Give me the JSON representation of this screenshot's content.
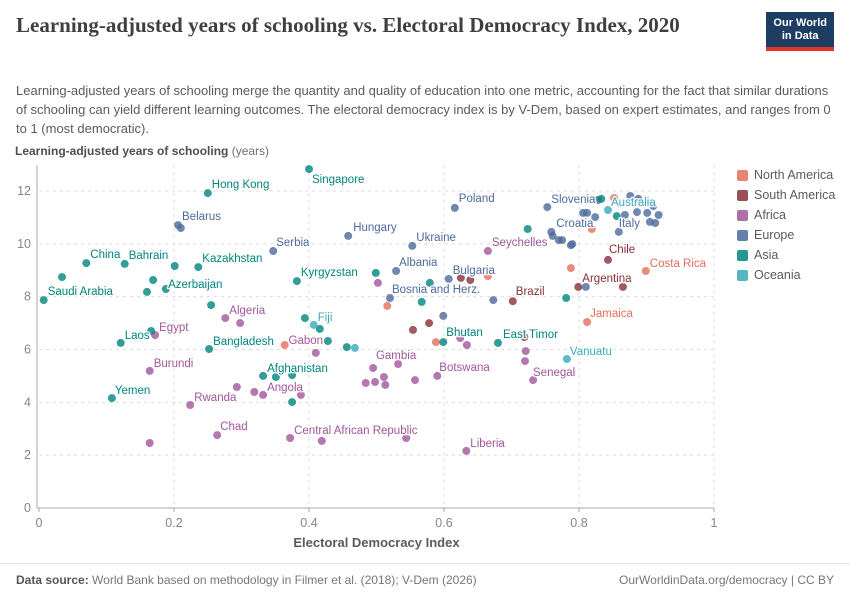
{
  "header": {
    "title": "Learning-adjusted years of schooling vs. Electoral Democracy Index, 2020",
    "subtitle": "Learning-adjusted years of schooling merge the quantity and quality of education into one metric, accounting for the fact that similar durations of schooling can yield different learning outcomes. The electoral democracy index is by V-Dem, based on expert estimates, and ranges from 0 to 1 (most democratic).",
    "logo": {
      "line1": "Our World",
      "line2": "in Data"
    }
  },
  "brand": {
    "logo_bg": "#1d3d63",
    "logo_stripe": "#e0352b"
  },
  "legend": {
    "items": [
      {
        "label": "North America",
        "color": "#e56e5a"
      },
      {
        "label": "South America",
        "color": "#883039"
      },
      {
        "label": "Africa",
        "color": "#a2559c"
      },
      {
        "label": "Europe",
        "color": "#4c6a9c"
      },
      {
        "label": "Asia",
        "color": "#00847e"
      },
      {
        "label": "Oceania",
        "color": "#38aaba"
      }
    ]
  },
  "chart_data": {
    "type": "scatter",
    "title": "Learning-adjusted years of schooling vs. Electoral Democracy Index, 2020",
    "x_axis": {
      "label": "Electoral Democracy Index",
      "range": [
        0,
        1
      ],
      "ticks": [
        0,
        0.2,
        0.4,
        0.6,
        0.8,
        1
      ],
      "tick_labels": [
        "0",
        "0.2",
        "0.4",
        "0.6",
        "0.8",
        "1"
      ]
    },
    "y_axis": {
      "label_bold": "Learning-adjusted years of schooling",
      "label_unit": " (years)",
      "range": [
        0,
        13
      ],
      "ticks": [
        0,
        2,
        4,
        6,
        8,
        10,
        12
      ]
    },
    "grid": "dashed",
    "legend_position": "right",
    "series": [
      {
        "name": "North America",
        "color": "#e56e5a",
        "points": [
          {
            "x": 0.899,
            "y": 8.97,
            "l": "Costa Rica",
            "o": [
              4,
              -4
            ]
          },
          {
            "x": 0.812,
            "y": 7.04,
            "l": "Jamaica",
            "o": [
              3,
              -5
            ]
          },
          {
            "x": 0.819,
            "y": 10.56
          },
          {
            "x": 0.852,
            "y": 11.73
          },
          {
            "x": 0.788,
            "y": 9.08
          },
          {
            "x": 0.665,
            "y": 8.78
          },
          {
            "x": 0.516,
            "y": 7.65
          },
          {
            "x": 0.588,
            "y": 6.28
          },
          {
            "x": 0.364,
            "y": 6.17
          }
        ]
      },
      {
        "name": "South America",
        "color": "#883039",
        "points": [
          {
            "x": 0.702,
            "y": 7.83,
            "l": "Brazil",
            "o": [
              3,
              -6
            ]
          },
          {
            "x": 0.843,
            "y": 9.39,
            "l": "Chile",
            "o": [
              1,
              -7
            ]
          },
          {
            "x": 0.799,
            "y": 8.37,
            "l": "Argentina",
            "o": [
              4,
              -5
            ]
          },
          {
            "x": 0.625,
            "y": 8.71
          },
          {
            "x": 0.639,
            "y": 8.63
          },
          {
            "x": 0.578,
            "y": 7.0
          },
          {
            "x": 0.554,
            "y": 6.74
          },
          {
            "x": 0.719,
            "y": 6.47
          },
          {
            "x": 0.865,
            "y": 8.37
          }
        ]
      },
      {
        "name": "Africa",
        "color": "#a2559c",
        "points": [
          {
            "x": 0.665,
            "y": 9.73,
            "l": "Seychelles",
            "o": [
              4,
              -5
            ]
          },
          {
            "x": 0.532,
            "y": 5.45,
            "l": "Gambia",
            "o": [
              -2,
              -5
            ],
            "a": "m"
          },
          {
            "x": 0.59,
            "y": 5.0,
            "l": "Botswana",
            "o": [
              2,
              -5
            ]
          },
          {
            "x": 0.72,
            "y": 5.56,
            "l": "Senegal",
            "o": [
              8,
              15
            ]
          },
          {
            "x": 0.276,
            "y": 7.19,
            "l": "Algeria",
            "o": [
              4,
              -4
            ]
          },
          {
            "x": 0.172,
            "y": 6.55,
            "l": "Egypt",
            "o": [
              4,
              -4
            ]
          },
          {
            "x": 0.41,
            "y": 5.87,
            "l": "Gabon",
            "o": [
              -10,
              -9
            ],
            "a": "m"
          },
          {
            "x": 0.164,
            "y": 5.19,
            "l": "Burundi",
            "o": [
              4,
              -4
            ]
          },
          {
            "x": 0.224,
            "y": 3.9,
            "l": "Rwanda",
            "o": [
              4,
              -4
            ]
          },
          {
            "x": 0.332,
            "y": 4.28,
            "l": "Angola",
            "o": [
              4,
              -4
            ]
          },
          {
            "x": 0.264,
            "y": 2.76,
            "l": "Chad",
            "o": [
              3,
              -5
            ]
          },
          {
            "x": 0.372,
            "y": 2.65,
            "l": "Central African Republic",
            "o": [
              4,
              -4
            ]
          },
          {
            "x": 0.633,
            "y": 2.16,
            "l": "Liberia",
            "o": [
              4,
              -4
            ]
          },
          {
            "x": 0.298,
            "y": 7.0
          },
          {
            "x": 0.502,
            "y": 8.52
          },
          {
            "x": 0.721,
            "y": 5.94
          },
          {
            "x": 0.732,
            "y": 4.84
          },
          {
            "x": 0.293,
            "y": 4.58
          },
          {
            "x": 0.319,
            "y": 4.39
          },
          {
            "x": 0.388,
            "y": 4.28
          },
          {
            "x": 0.164,
            "y": 2.46
          },
          {
            "x": 0.419,
            "y": 2.54
          },
          {
            "x": 0.544,
            "y": 2.65
          },
          {
            "x": 0.484,
            "y": 4.73
          },
          {
            "x": 0.498,
            "y": 4.77
          },
          {
            "x": 0.511,
            "y": 4.96
          },
          {
            "x": 0.513,
            "y": 4.66
          },
          {
            "x": 0.557,
            "y": 4.84
          },
          {
            "x": 0.495,
            "y": 5.3
          },
          {
            "x": 0.624,
            "y": 6.43
          },
          {
            "x": 0.634,
            "y": 6.17
          }
        ]
      },
      {
        "name": "Europe",
        "color": "#4c6a9c",
        "points": [
          {
            "x": 0.206,
            "y": 10.71,
            "l": "Belarus",
            "o": [
              4,
              -5
            ]
          },
          {
            "x": 0.347,
            "y": 9.73,
            "l": "Serbia",
            "o": [
              3,
              -5
            ]
          },
          {
            "x": 0.458,
            "y": 10.3,
            "l": "Hungary",
            "o": [
              5,
              -5
            ]
          },
          {
            "x": 0.553,
            "y": 9.92,
            "l": "Ukraine",
            "o": [
              4,
              -5
            ]
          },
          {
            "x": 0.616,
            "y": 11.36,
            "l": "Poland",
            "o": [
              4,
              -6
            ]
          },
          {
            "x": 0.529,
            "y": 8.97,
            "l": "Albania",
            "o": [
              3,
              -5
            ]
          },
          {
            "x": 0.607,
            "y": 8.67,
            "l": "Bulgaria",
            "o": [
              4,
              -5
            ]
          },
          {
            "x": 0.52,
            "y": 7.95,
            "l": "Bosnia and Herz.",
            "o": [
              2,
              -5
            ]
          },
          {
            "x": 0.753,
            "y": 11.39,
            "l": "Slovenia",
            "o": [
              4,
              -4
            ]
          },
          {
            "x": 0.759,
            "y": 10.45,
            "l": "Croatia",
            "o": [
              5,
              -5
            ]
          },
          {
            "x": 0.859,
            "y": 10.45,
            "l": "Italy",
            "o": [
              0,
              -5
            ]
          },
          {
            "x": 0.21,
            "y": 10.6
          },
          {
            "x": 0.599,
            "y": 7.27
          },
          {
            "x": 0.673,
            "y": 7.87
          },
          {
            "x": 0.81,
            "y": 8.37
          },
          {
            "x": 0.788,
            "y": 9.95
          },
          {
            "x": 0.761,
            "y": 10.3
          },
          {
            "x": 0.77,
            "y": 10.14
          },
          {
            "x": 0.775,
            "y": 10.14
          },
          {
            "x": 0.79,
            "y": 9.99
          },
          {
            "x": 0.806,
            "y": 11.17
          },
          {
            "x": 0.812,
            "y": 11.17
          },
          {
            "x": 0.824,
            "y": 11.01
          },
          {
            "x": 0.828,
            "y": 11.66
          },
          {
            "x": 0.868,
            "y": 11.09
          },
          {
            "x": 0.876,
            "y": 11.81
          },
          {
            "x": 0.888,
            "y": 11.7
          },
          {
            "x": 0.886,
            "y": 11.2
          },
          {
            "x": 0.901,
            "y": 11.17
          },
          {
            "x": 0.902,
            "y": 11.58
          },
          {
            "x": 0.91,
            "y": 11.43
          },
          {
            "x": 0.918,
            "y": 11.09
          },
          {
            "x": 0.905,
            "y": 10.83
          },
          {
            "x": 0.913,
            "y": 10.79
          }
        ]
      },
      {
        "name": "Asia",
        "color": "#00847e",
        "points": [
          {
            "x": 0.007,
            "y": 7.87,
            "l": "Saudi Arabia",
            "o": [
              4,
              -5
            ]
          },
          {
            "x": 0.07,
            "y": 9.27,
            "l": "China",
            "o": [
              4,
              -5
            ]
          },
          {
            "x": 0.127,
            "y": 9.24,
            "l": "Bahrain",
            "o": [
              4,
              -5
            ]
          },
          {
            "x": 0.236,
            "y": 9.12,
            "l": "Kazakhstan",
            "o": [
              4,
              -5
            ]
          },
          {
            "x": 0.169,
            "y": 8.63,
            "l": "Azerbaijan",
            "o": [
              15,
              8
            ]
          },
          {
            "x": 0.25,
            "y": 11.92,
            "l": "Hong Kong",
            "o": [
              4,
              -5
            ]
          },
          {
            "x": 0.4,
            "y": 12.83,
            "l": "Singapore",
            "o": [
              3,
              14
            ]
          },
          {
            "x": 0.382,
            "y": 8.59,
            "l": "Kyrgyzstan",
            "o": [
              4,
              -5
            ]
          },
          {
            "x": 0.68,
            "y": 6.25,
            "l": "East Timor",
            "o": [
              5,
              -5
            ]
          },
          {
            "x": 0.599,
            "y": 6.28,
            "l": "Bhutan",
            "o": [
              3,
              -6
            ]
          },
          {
            "x": 0.121,
            "y": 6.25,
            "l": "Laos",
            "o": [
              4,
              -4
            ]
          },
          {
            "x": 0.252,
            "y": 6.02,
            "l": "Bangladesh",
            "o": [
              4,
              -4
            ]
          },
          {
            "x": 0.332,
            "y": 5.0,
            "l": "Afghanistan",
            "o": [
              4,
              -4
            ]
          },
          {
            "x": 0.108,
            "y": 4.16,
            "l": "Yemen",
            "o": [
              3,
              -4
            ]
          },
          {
            "x": 0.166,
            "y": 6.7
          },
          {
            "x": 0.201,
            "y": 9.16
          },
          {
            "x": 0.034,
            "y": 8.74
          },
          {
            "x": 0.16,
            "y": 8.18
          },
          {
            "x": 0.188,
            "y": 8.29
          },
          {
            "x": 0.255,
            "y": 7.68
          },
          {
            "x": 0.394,
            "y": 7.19
          },
          {
            "x": 0.416,
            "y": 6.78
          },
          {
            "x": 0.428,
            "y": 6.32
          },
          {
            "x": 0.456,
            "y": 6.09
          },
          {
            "x": 0.375,
            "y": 4.01
          },
          {
            "x": 0.351,
            "y": 4.96
          },
          {
            "x": 0.375,
            "y": 5.03
          },
          {
            "x": 0.567,
            "y": 7.8
          },
          {
            "x": 0.579,
            "y": 8.52
          },
          {
            "x": 0.499,
            "y": 8.9
          },
          {
            "x": 0.781,
            "y": 7.95
          },
          {
            "x": 0.724,
            "y": 10.56
          },
          {
            "x": 0.833,
            "y": 11.7
          },
          {
            "x": 0.856,
            "y": 11.05
          }
        ]
      },
      {
        "name": "Oceania",
        "color": "#38aaba",
        "points": [
          {
            "x": 0.843,
            "y": 11.28,
            "l": "Australia",
            "o": [
              3,
              -4
            ]
          },
          {
            "x": 0.782,
            "y": 5.64,
            "l": "Vanuatu",
            "o": [
              3,
              -4
            ]
          },
          {
            "x": 0.407,
            "y": 6.93,
            "l": "Fiji",
            "o": [
              4,
              -4
            ]
          },
          {
            "x": 0.468,
            "y": 6.06
          }
        ]
      }
    ]
  },
  "footer": {
    "source_label": "Data source:",
    "source_text": " World Bank based on methodology in Filmer et al. (2018); V-Dem (2026)",
    "right_text": "OurWorldinData.org/democracy | CC BY"
  }
}
